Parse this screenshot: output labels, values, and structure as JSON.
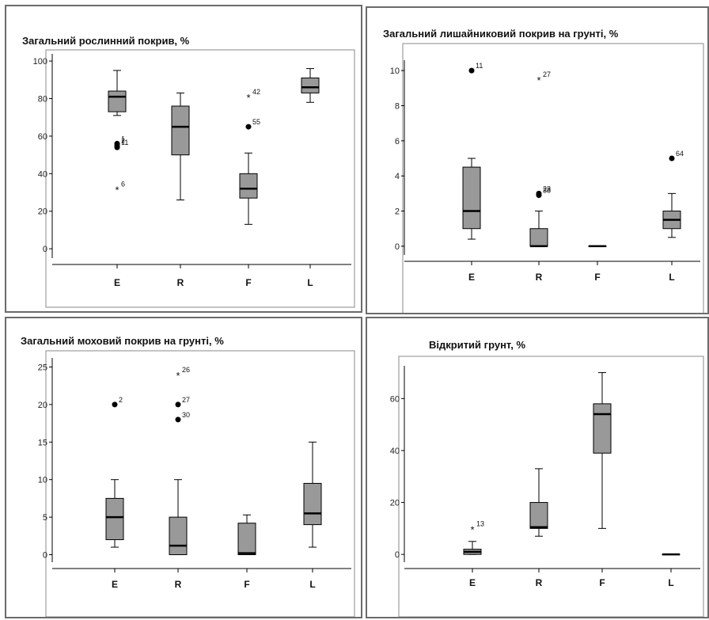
{
  "colors": {
    "box_fill": "#999999",
    "stroke": "#000000",
    "panel_border": "#6b6b6b"
  },
  "chart_data": [
    {
      "type": "boxplot",
      "title": "Загальний рослинний покрив, %",
      "categories": [
        "E",
        "R",
        "F",
        "L"
      ],
      "yticks": [
        0,
        20,
        40,
        60,
        80,
        100
      ],
      "ylim": [
        -5,
        103
      ],
      "boxes": [
        {
          "cat": "E",
          "min": 71,
          "q1": 73,
          "median": 81,
          "q3": 84,
          "max": 95
        },
        {
          "cat": "R",
          "min": 26,
          "q1": 50,
          "median": 65,
          "q3": 76,
          "max": 83
        },
        {
          "cat": "F",
          "min": 13,
          "q1": 27,
          "median": 32,
          "q3": 40,
          "max": 51
        },
        {
          "cat": "L",
          "min": 78,
          "q1": 83,
          "median": 86,
          "q3": 91,
          "max": 96
        }
      ],
      "outliers": [
        {
          "cat": "E",
          "value": 56,
          "marker": "circle",
          "label": "1"
        },
        {
          "cat": "E",
          "value": 55,
          "marker": "circle",
          "label": "2"
        },
        {
          "cat": "E",
          "value": 54,
          "marker": "circle",
          "label": "11"
        },
        {
          "cat": "E",
          "value": 32,
          "marker": "star",
          "label": "6"
        },
        {
          "cat": "F",
          "value": 81,
          "marker": "star",
          "label": "42"
        },
        {
          "cat": "F",
          "value": 65,
          "marker": "circle",
          "label": "55"
        }
      ]
    },
    {
      "type": "boxplot",
      "title": "Загальний лишайниковий покрив на грунті, %",
      "categories": [
        "E",
        "R",
        "F",
        "L"
      ],
      "yticks": [
        0,
        2,
        4,
        6,
        8,
        10
      ],
      "ylim": [
        -0.5,
        10.5
      ],
      "boxes": [
        {
          "cat": "E",
          "min": 0.4,
          "q1": 1,
          "median": 2,
          "q3": 4.5,
          "max": 5
        },
        {
          "cat": "R",
          "min": 0,
          "q1": 0,
          "median": 0,
          "q3": 1,
          "max": 2
        },
        {
          "cat": "F",
          "min": 0,
          "q1": 0,
          "median": 0,
          "q3": 0,
          "max": 0
        },
        {
          "cat": "L",
          "min": 0.5,
          "q1": 1,
          "median": 1.5,
          "q3": 2,
          "max": 3
        }
      ],
      "outliers": [
        {
          "cat": "E",
          "value": 10,
          "marker": "circle",
          "label": "11"
        },
        {
          "cat": "R",
          "value": 9.5,
          "marker": "star",
          "label": "27"
        },
        {
          "cat": "R",
          "value": 3,
          "marker": "circle",
          "label": "23"
        },
        {
          "cat": "R",
          "value": 2.9,
          "marker": "circle",
          "label": "38"
        },
        {
          "cat": "L",
          "value": 5,
          "marker": "circle",
          "label": "64"
        }
      ]
    },
    {
      "type": "boxplot",
      "title": "Загальний моховий покрив на грунті, %",
      "categories": [
        "E",
        "R",
        "F",
        "L"
      ],
      "yticks": [
        0,
        5,
        10,
        15,
        20,
        25
      ],
      "ylim": [
        -1,
        26
      ],
      "boxes": [
        {
          "cat": "E",
          "min": 1,
          "q1": 2,
          "median": 5,
          "q3": 7.5,
          "max": 10
        },
        {
          "cat": "R",
          "min": 0,
          "q1": 0,
          "median": 1.2,
          "q3": 5,
          "max": 10
        },
        {
          "cat": "F",
          "min": 0,
          "q1": 0,
          "median": 0.2,
          "q3": 4.2,
          "max": 5.3
        },
        {
          "cat": "L",
          "min": 1,
          "q1": 4,
          "median": 5.5,
          "q3": 9.5,
          "max": 15
        }
      ],
      "outliers": [
        {
          "cat": "E",
          "value": 20,
          "marker": "circle",
          "label": "2"
        },
        {
          "cat": "R",
          "value": 24,
          "marker": "star",
          "label": "26"
        },
        {
          "cat": "R",
          "value": 20,
          "marker": "circle",
          "label": "27"
        },
        {
          "cat": "R",
          "value": 18,
          "marker": "circle",
          "label": "30"
        }
      ]
    },
    {
      "type": "boxplot",
      "title": "Відкритий грунт, %",
      "categories": [
        "E",
        "R",
        "F",
        "L"
      ],
      "yticks": [
        0,
        20,
        40,
        60
      ],
      "ylim": [
        -3,
        72
      ],
      "boxes": [
        {
          "cat": "E",
          "min": 0,
          "q1": 0,
          "median": 1,
          "q3": 2,
          "max": 5
        },
        {
          "cat": "R",
          "min": 7,
          "q1": 10,
          "median": 10.5,
          "q3": 20,
          "max": 33
        },
        {
          "cat": "F",
          "min": 10,
          "q1": 39,
          "median": 54,
          "q3": 58,
          "max": 70
        },
        {
          "cat": "L",
          "min": 0,
          "q1": 0,
          "median": 0,
          "q3": 0,
          "max": 0
        }
      ],
      "outliers": [
        {
          "cat": "E",
          "value": 10,
          "marker": "star",
          "label": "13"
        }
      ]
    }
  ]
}
